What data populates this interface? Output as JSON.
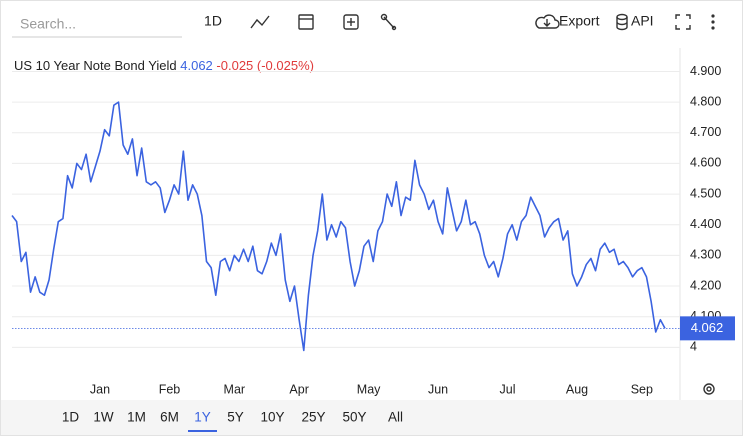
{
  "toolbar": {
    "search": "Search...",
    "interval": "1D",
    "export": "Export",
    "api": "API"
  },
  "ranges": {
    "items": [
      "1D",
      "1W",
      "1M",
      "6M",
      "1Y",
      "5Y",
      "10Y",
      "25Y",
      "50Y",
      "All"
    ],
    "selected": "1Y"
  },
  "chart_data": {
    "type": "line",
    "title": "US 10 Year Note Bond Yield",
    "price": "4.062",
    "change": "-0.025 (-0.025%)",
    "color": "#3b63e0",
    "price_color": "#3b63e0",
    "change_color": "#e03b3b",
    "grid": true,
    "ylim": [
      3.9,
      4.97
    ],
    "yticks": [
      4,
      {
        "value": 4.1,
        "label": "4.100"
      },
      {
        "value": 4.2,
        "label": "4.200"
      },
      {
        "value": 4.3,
        "label": "4.300"
      },
      {
        "value": 4.4,
        "label": "4.400"
      },
      {
        "value": 4.5,
        "label": "4.500"
      },
      {
        "value": 4.6,
        "label": "4.600"
      },
      {
        "value": 4.7,
        "label": "4.700"
      },
      {
        "value": 4.8,
        "label": "4.800"
      },
      {
        "value": 4.9,
        "label": "4.900"
      }
    ],
    "categories": [
      null,
      null,
      null,
      null,
      null,
      null,
      null,
      null,
      null,
      null,
      null,
      null,
      null,
      null,
      null,
      null,
      null,
      null,
      null,
      "Jan",
      null,
      null,
      null,
      null,
      null,
      null,
      null,
      null,
      null,
      null,
      null,
      null,
      null,
      null,
      "Feb",
      null,
      null,
      null,
      null,
      null,
      null,
      null,
      null,
      null,
      null,
      null,
      null,
      null,
      "Mar",
      null,
      null,
      null,
      null,
      null,
      null,
      null,
      null,
      null,
      null,
      null,
      null,
      null,
      "Apr",
      null,
      null,
      null,
      null,
      null,
      null,
      null,
      null,
      null,
      null,
      null,
      null,
      null,
      null,
      "May",
      null,
      null,
      null,
      null,
      null,
      null,
      null,
      null,
      null,
      null,
      null,
      null,
      null,
      null,
      "Jun",
      null,
      null,
      null,
      null,
      null,
      null,
      null,
      null,
      null,
      null,
      null,
      null,
      null,
      null,
      "Jul",
      null,
      null,
      null,
      null,
      null,
      null,
      null,
      null,
      null,
      null,
      null,
      null,
      null,
      null,
      "Aug",
      null,
      null,
      null,
      null,
      null,
      null,
      null,
      null,
      null,
      null,
      null,
      null,
      null,
      "Sep",
      null,
      null,
      null,
      null,
      null
    ],
    "values": [
      4.43,
      4.41,
      4.28,
      4.31,
      4.18,
      4.23,
      4.18,
      4.17,
      4.22,
      4.32,
      4.41,
      4.42,
      4.56,
      4.52,
      4.6,
      4.58,
      4.63,
      4.54,
      4.59,
      4.64,
      4.71,
      4.69,
      4.79,
      4.8,
      4.66,
      4.63,
      4.68,
      4.56,
      4.65,
      4.54,
      4.53,
      4.54,
      4.52,
      4.44,
      4.48,
      4.53,
      4.5,
      4.64,
      4.48,
      4.53,
      4.5,
      4.43,
      4.28,
      4.26,
      4.17,
      4.28,
      4.29,
      4.25,
      4.3,
      4.28,
      4.32,
      4.28,
      4.33,
      4.25,
      4.24,
      4.28,
      4.34,
      4.3,
      4.37,
      4.22,
      4.15,
      4.2,
      4.09,
      3.99,
      4.17,
      4.3,
      4.38,
      4.5,
      4.35,
      4.4,
      4.36,
      4.41,
      4.39,
      4.28,
      4.2,
      4.25,
      4.33,
      4.35,
      4.28,
      4.38,
      4.41,
      4.5,
      4.46,
      4.54,
      4.43,
      4.49,
      4.48,
      4.61,
      4.53,
      4.5,
      4.45,
      4.48,
      4.41,
      4.37,
      4.52,
      4.45,
      4.38,
      4.41,
      4.48,
      4.4,
      4.41,
      4.37,
      4.3,
      4.26,
      4.28,
      4.23,
      4.29,
      4.37,
      4.4,
      4.35,
      4.41,
      4.43,
      4.49,
      4.46,
      4.43,
      4.36,
      4.39,
      4.41,
      4.42,
      4.35,
      4.38,
      4.24,
      4.2,
      4.23,
      4.27,
      4.29,
      4.25,
      4.32,
      4.34,
      4.31,
      4.32,
      4.27,
      4.28,
      4.26,
      4.23,
      4.25,
      4.26,
      4.23,
      4.15,
      4.05,
      4.09,
      4.062
    ]
  }
}
